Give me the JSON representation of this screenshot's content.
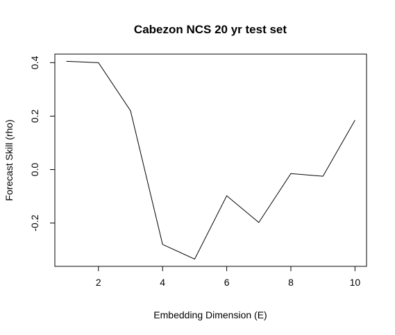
{
  "chart_data": {
    "type": "line",
    "title": "Cabezon NCS 20 yr test set",
    "xlabel": "Embedding Dimension (E)",
    "ylabel": "Forecast Skill (rho)",
    "x": [
      1,
      2,
      3,
      4,
      5,
      6,
      7,
      8,
      9,
      10
    ],
    "series": [
      {
        "values": [
          0.405,
          0.4,
          0.22,
          -0.28,
          -0.335,
          -0.098,
          -0.198,
          -0.015,
          -0.025,
          0.185
        ]
      }
    ],
    "xlim": [
      0.64,
      10.36
    ],
    "ylim": [
      -0.362,
      0.432
    ],
    "xticks": [
      2,
      4,
      6,
      8,
      10
    ],
    "xtick_labels": [
      "2",
      "4",
      "6",
      "8",
      "10"
    ],
    "yticks": [
      -0.2,
      0.0,
      0.2,
      0.4
    ],
    "ytick_labels": [
      "-0.2",
      "0.0",
      "0.2",
      "0.4"
    ],
    "grid": false,
    "legend": false,
    "line_color": "#000000"
  }
}
